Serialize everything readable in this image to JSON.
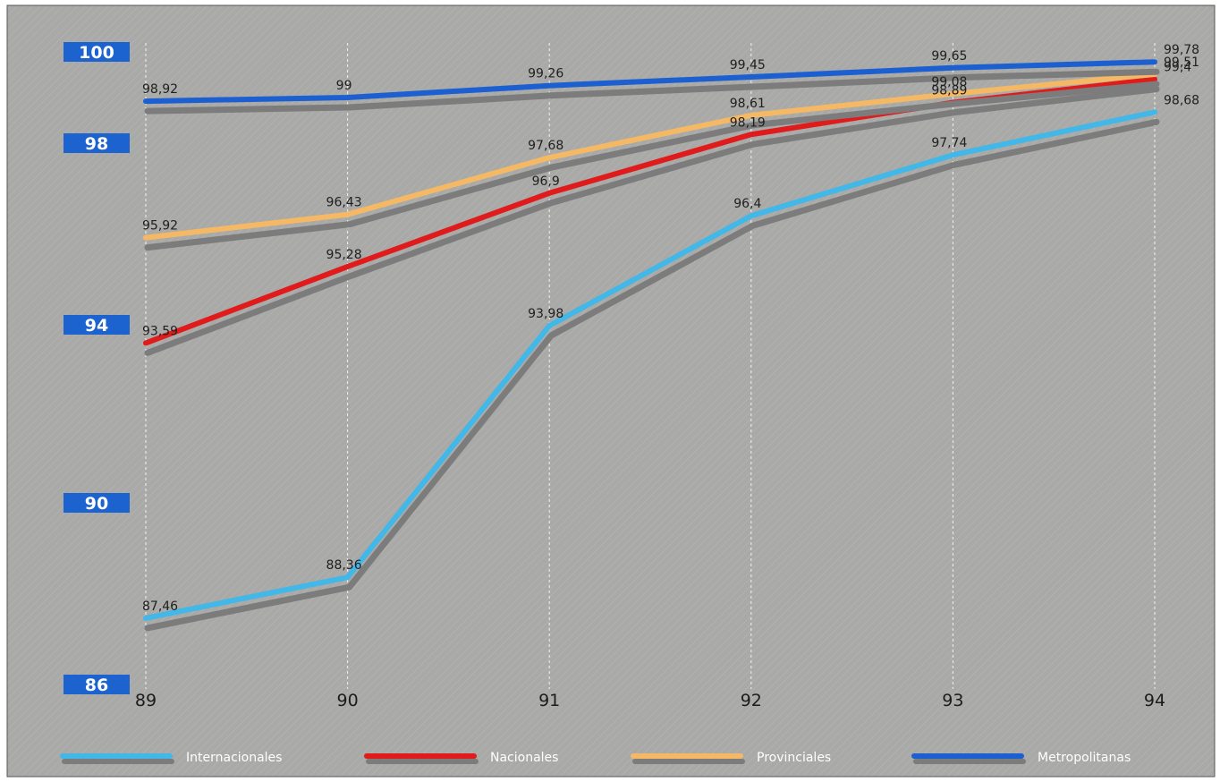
{
  "chart_data": {
    "type": "line",
    "x": [
      "89",
      "90",
      "91",
      "92",
      "93",
      "94"
    ],
    "ylim": [
      86,
      100
    ],
    "y_ticks": [
      "100",
      "98",
      "94",
      "90",
      "86"
    ],
    "grid": "vertical dashed lines at each x category",
    "legend_position": "bottom",
    "background_color": "#a9a9a7",
    "shadow_color": "#7c7c7c",
    "series": [
      {
        "name": "Internacionales",
        "color": "#41b8e8",
        "values": [
          87.46,
          88.36,
          93.98,
          96.4,
          97.74,
          98.68
        ],
        "labels": [
          "87,46",
          "88,36",
          "93,98",
          "96,4",
          "97,74",
          "98,68"
        ]
      },
      {
        "name": "Nacionales",
        "color": "#e01b1b",
        "values": [
          93.59,
          95.28,
          96.9,
          98.19,
          98.89,
          99.4
        ],
        "labels": [
          "93,59",
          "95,28",
          "96,9",
          "98,19",
          "98,89",
          "99,4"
        ]
      },
      {
        "name": "Provinciales",
        "color": "#f5b966",
        "values": [
          95.92,
          96.43,
          97.68,
          98.61,
          99.08,
          99.51
        ],
        "labels": [
          "95,92",
          "96,43",
          "97,68",
          "98,61",
          "99,08",
          "99,51"
        ]
      },
      {
        "name": "Metropolitanas",
        "color": "#1c5fd1",
        "values": [
          98.92,
          99,
          99.26,
          99.45,
          99.65,
          99.78
        ],
        "labels": [
          "98,92",
          "99",
          "99,26",
          "99,45",
          "99,65",
          "99,78"
        ]
      }
    ]
  }
}
